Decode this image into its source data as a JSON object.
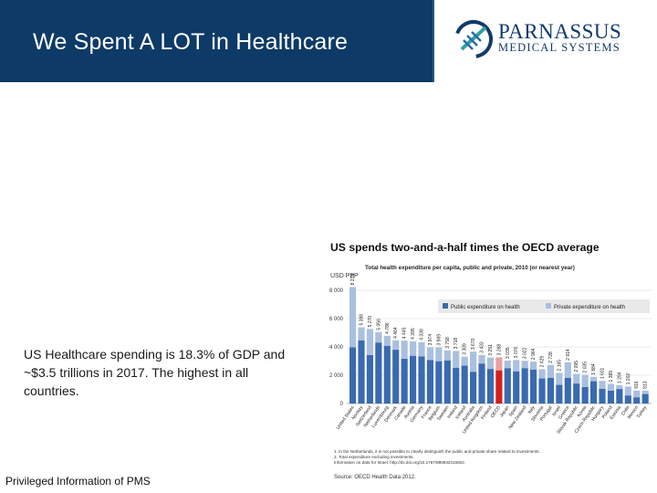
{
  "slide": {
    "title": "We Spent A LOT in Healthcare",
    "body": "US Healthcare spending is 18.3% of GDP and ~$3.5 trillions in 2017.  The highest in all countries.",
    "footer": "Privileged Information of PMS"
  },
  "logo": {
    "line1": "PARNASSUS",
    "line2": "MEDICAL SYSTEMS",
    "colors": {
      "navy": "#123a6b",
      "teal": "#2aa3a0",
      "blue": "#2a6aa8"
    }
  },
  "colors": {
    "title_bg": "#0d3a66",
    "public": "#3a6ab0",
    "private": "#a9c0df",
    "oecd": "#d02020",
    "oecd_private": "#e8a0a0"
  },
  "chart_data": {
    "type": "bar",
    "stacked": true,
    "title": "US spends two-and-a-half times the OECD average",
    "subtitle": "Total health expenditure per capita, public and private, 2010 (or nearest year)",
    "ylabel": "USD PPP",
    "ylim": [
      0,
      8000
    ],
    "yticks": [
      0,
      2000,
      4000,
      6000,
      8000
    ],
    "ytick_labels": [
      "0",
      "2 000",
      "4 000",
      "6 000",
      "8 000"
    ],
    "legend": [
      "Public expenditure on health",
      "Private expenditure on health"
    ],
    "categories": [
      "United States",
      "Norway",
      "Switzerland",
      "Netherlands",
      "Luxembourg",
      "Denmark",
      "Canada",
      "Austria",
      "Germany",
      "France",
      "Belgium",
      "Sweden",
      "Ireland",
      "Iceland",
      "Australia",
      "United Kingdom",
      "Finland",
      "OECD",
      "Japan",
      "Spain",
      "New Zealand",
      "Italy",
      "Slovenia",
      "Portugal",
      "Israel",
      "Greece",
      "Slovak Republic",
      "Korea",
      "Czech Republic",
      "Hungary",
      "Poland",
      "Estonia",
      "Chile",
      "Mexico",
      "Turkey"
    ],
    "totals": [
      8233,
      5388,
      5270,
      5056,
      4786,
      4464,
      4445,
      4395,
      4338,
      3974,
      3969,
      3758,
      3718,
      3309,
      3670,
      3433,
      3251,
      3268,
      3035,
      3076,
      3022,
      2964,
      2429,
      2728,
      2165,
      2914,
      2095,
      2035,
      1884,
      1601,
      1389,
      1294,
      1202,
      916,
      913
    ],
    "total_labels": [
      "8 233",
      "5 388",
      "5 270",
      "5 056",
      "4 786",
      "4 464",
      "4 445",
      "4 395",
      "4 338",
      "3 974",
      "3 969",
      "3 758",
      "3 718",
      "3 309",
      "3 670",
      "3 433",
      "3 251",
      "3 268",
      "3 035",
      "3 076",
      "3 022",
      "2 964",
      "2 429",
      "2 728",
      "2 165",
      "2 914",
      "2 095",
      "2 035",
      "1 884",
      "1 601",
      "1 389",
      "1 294",
      "1 202",
      "916",
      "913"
    ],
    "public_values": [
      3967,
      4456,
      3424,
      4306,
      4072,
      3801,
      3159,
      3371,
      3324,
      3075,
      2986,
      3043,
      2521,
      2673,
      2241,
      2821,
      2443,
      2343,
      2496,
      2271,
      2495,
      2389,
      1769,
      1811,
      1316,
      1814,
      1411,
      1161,
      1571,
      1039,
      903,
      1025,
      566,
      433,
      669
    ],
    "highlight_category": "OECD",
    "notes": [
      "1. In the Netherlands, it is not possible to clearly distinguish the public and private share related to investments.",
      "2. Total expenditure excluding investments.",
      "Information on data for Israel: http://dx.doi.org/10.1787/888932315602."
    ],
    "source": "Source: OECD Health Data 2012."
  }
}
